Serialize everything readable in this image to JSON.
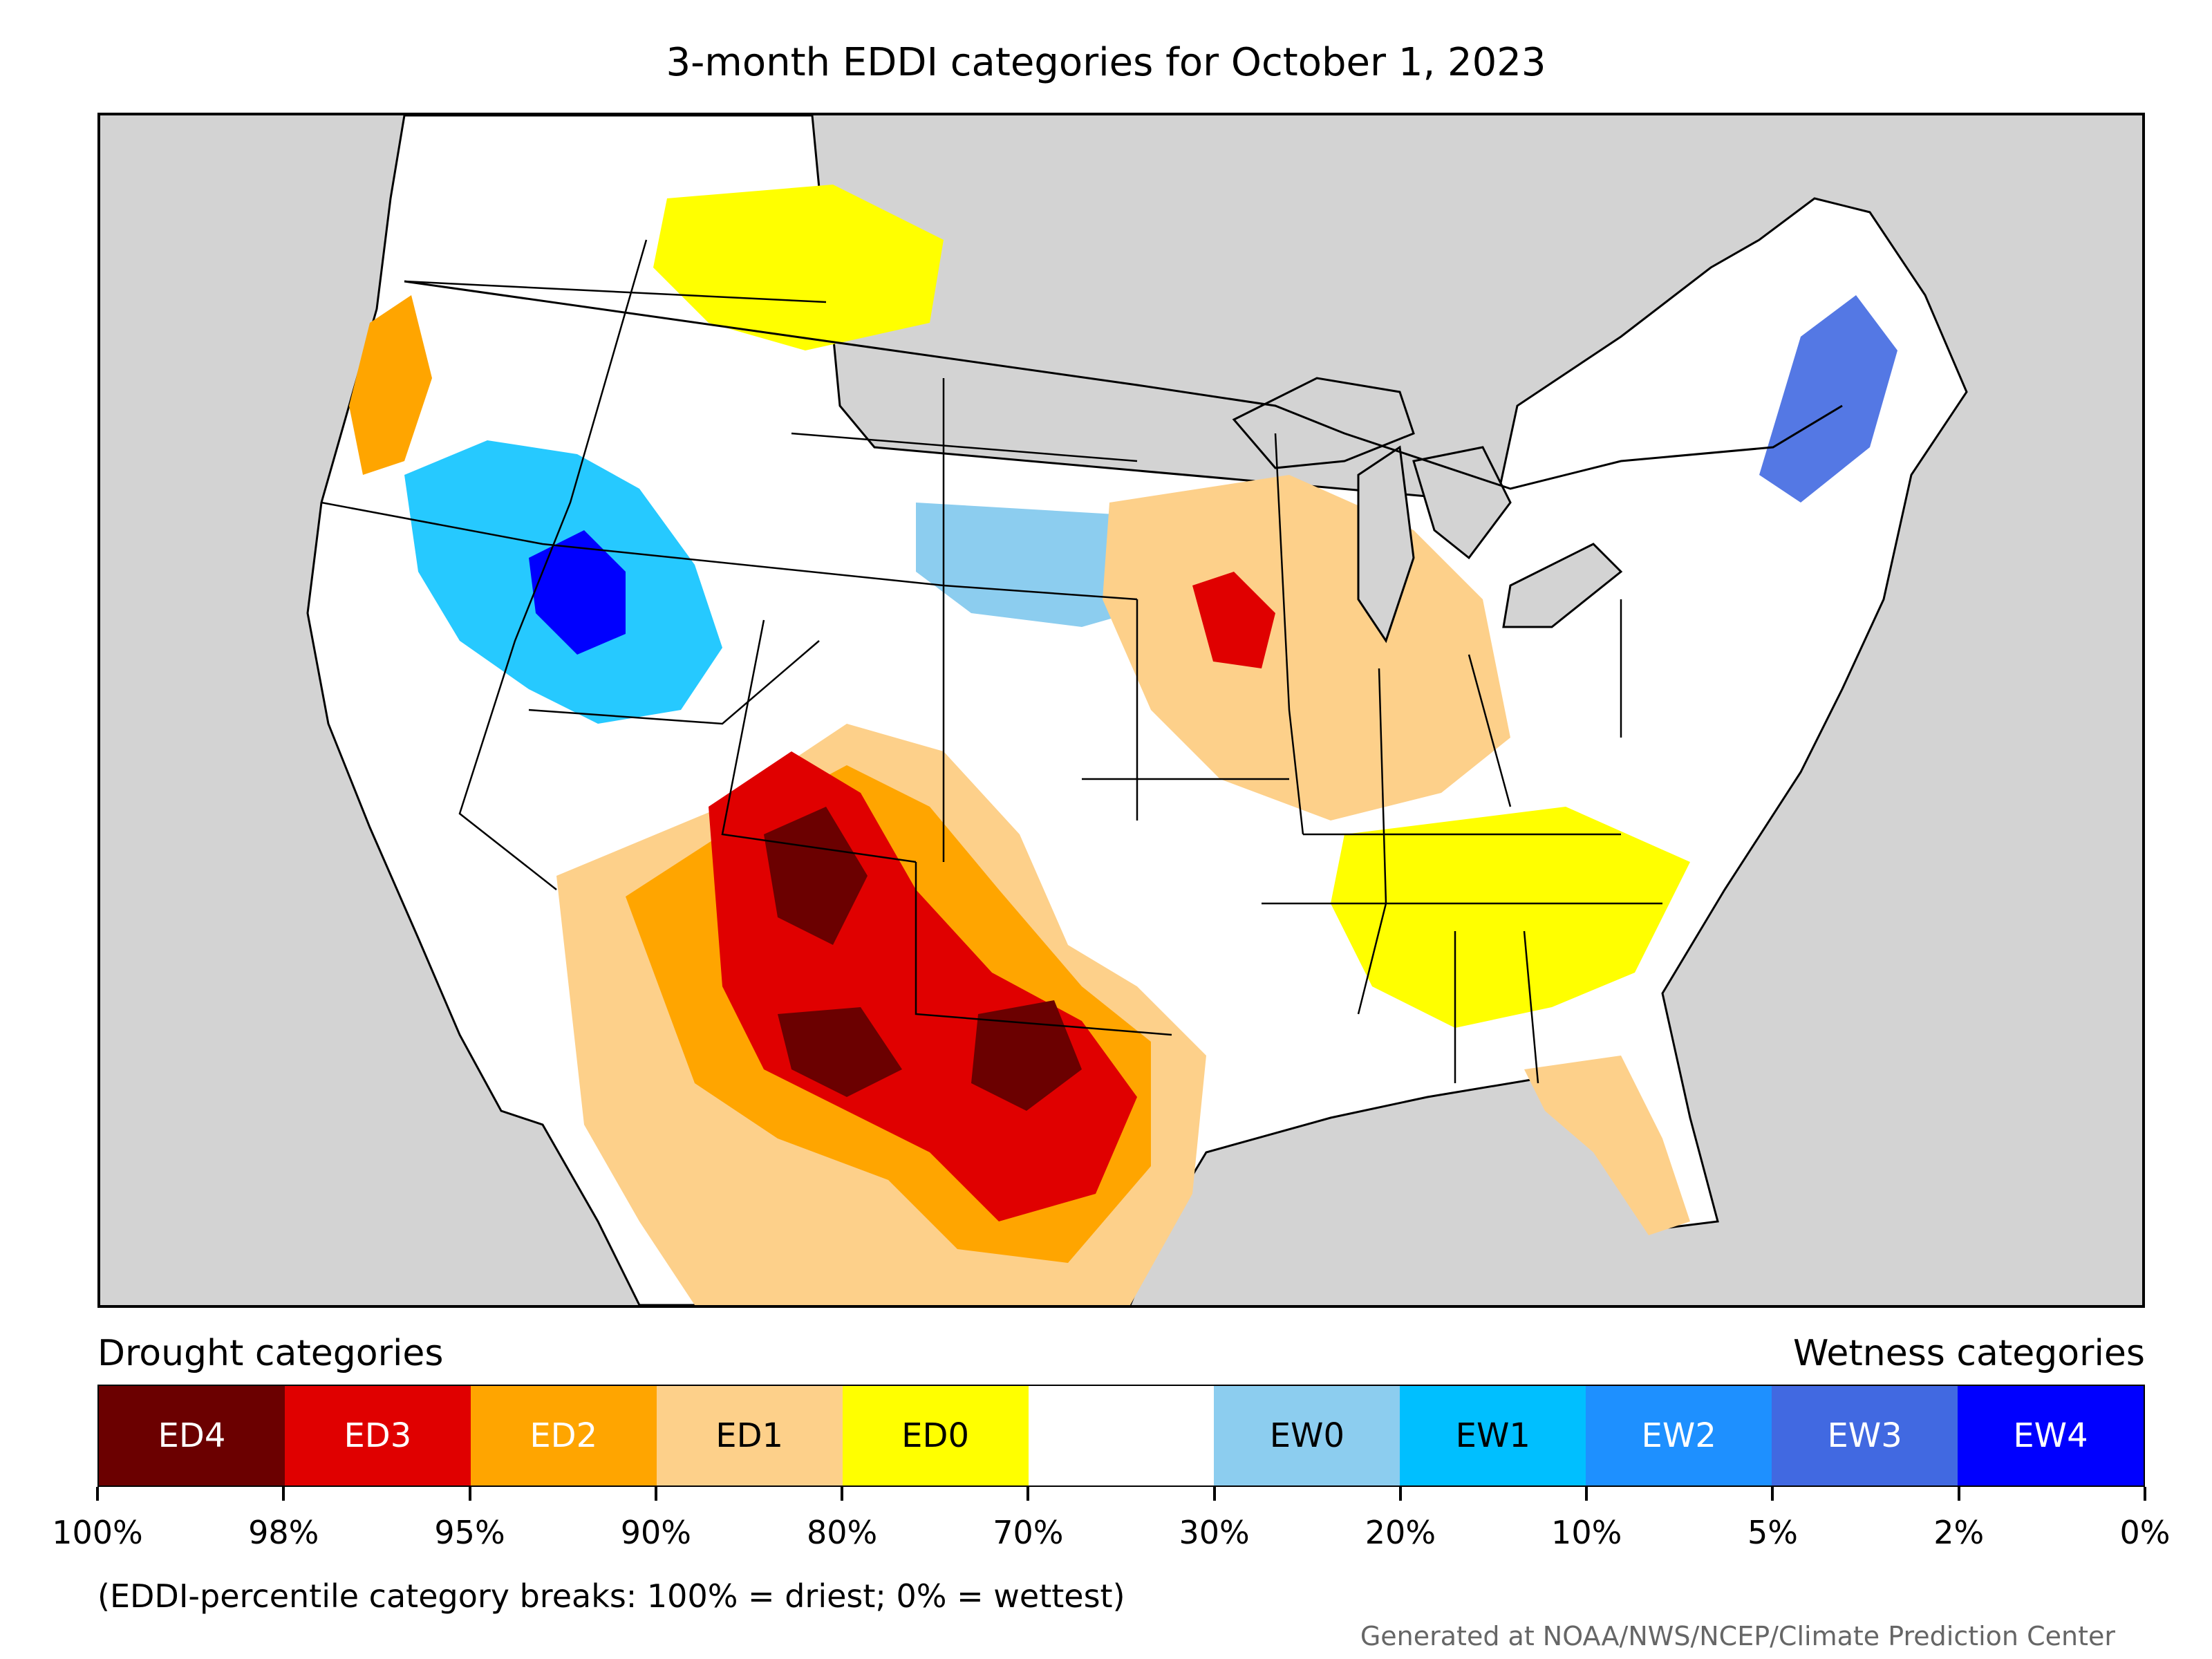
{
  "title": "3-month EDDI categories for October 1, 2023",
  "map": {
    "description_region": "contiguous United States",
    "colors": {
      "land": "#ffffff",
      "water": "#d3d3d3",
      "border": "#000000"
    }
  },
  "legend": {
    "drought_heading": "Drought categories",
    "wetness_heading": "Wetness categories",
    "categories": [
      {
        "label": "ED4",
        "color": "#6b0000",
        "text_color": "#ffffff"
      },
      {
        "label": "ED3",
        "color": "#e00000",
        "text_color": "#ffffff"
      },
      {
        "label": "ED2",
        "color": "#ffa500",
        "text_color": "#ffffff"
      },
      {
        "label": "ED1",
        "color": "#fdd08a",
        "text_color": "#000000"
      },
      {
        "label": "ED0",
        "color": "#ffff00",
        "text_color": "#000000"
      },
      {
        "label": "",
        "color": "#ffffff",
        "text_color": "#000000"
      },
      {
        "label": "EW0",
        "color": "#8ccdef",
        "text_color": "#000000"
      },
      {
        "label": "EW1",
        "color": "#00bfff",
        "text_color": "#000000"
      },
      {
        "label": "EW2",
        "color": "#1e90ff",
        "text_color": "#ffffff"
      },
      {
        "label": "EW3",
        "color": "#4169e1",
        "text_color": "#ffffff"
      },
      {
        "label": "EW4",
        "color": "#0000ff",
        "text_color": "#ffffff"
      }
    ],
    "tick_labels": [
      "100%",
      "98%",
      "95%",
      "90%",
      "80%",
      "70%",
      "30%",
      "20%",
      "10%",
      "5%",
      "2%",
      "0%"
    ]
  },
  "note": "(EDDI-percentile category breaks: 100% = driest; 0% = wettest)",
  "credit": "Generated at NOAA/NWS/NCEP/Climate Prediction Center"
}
